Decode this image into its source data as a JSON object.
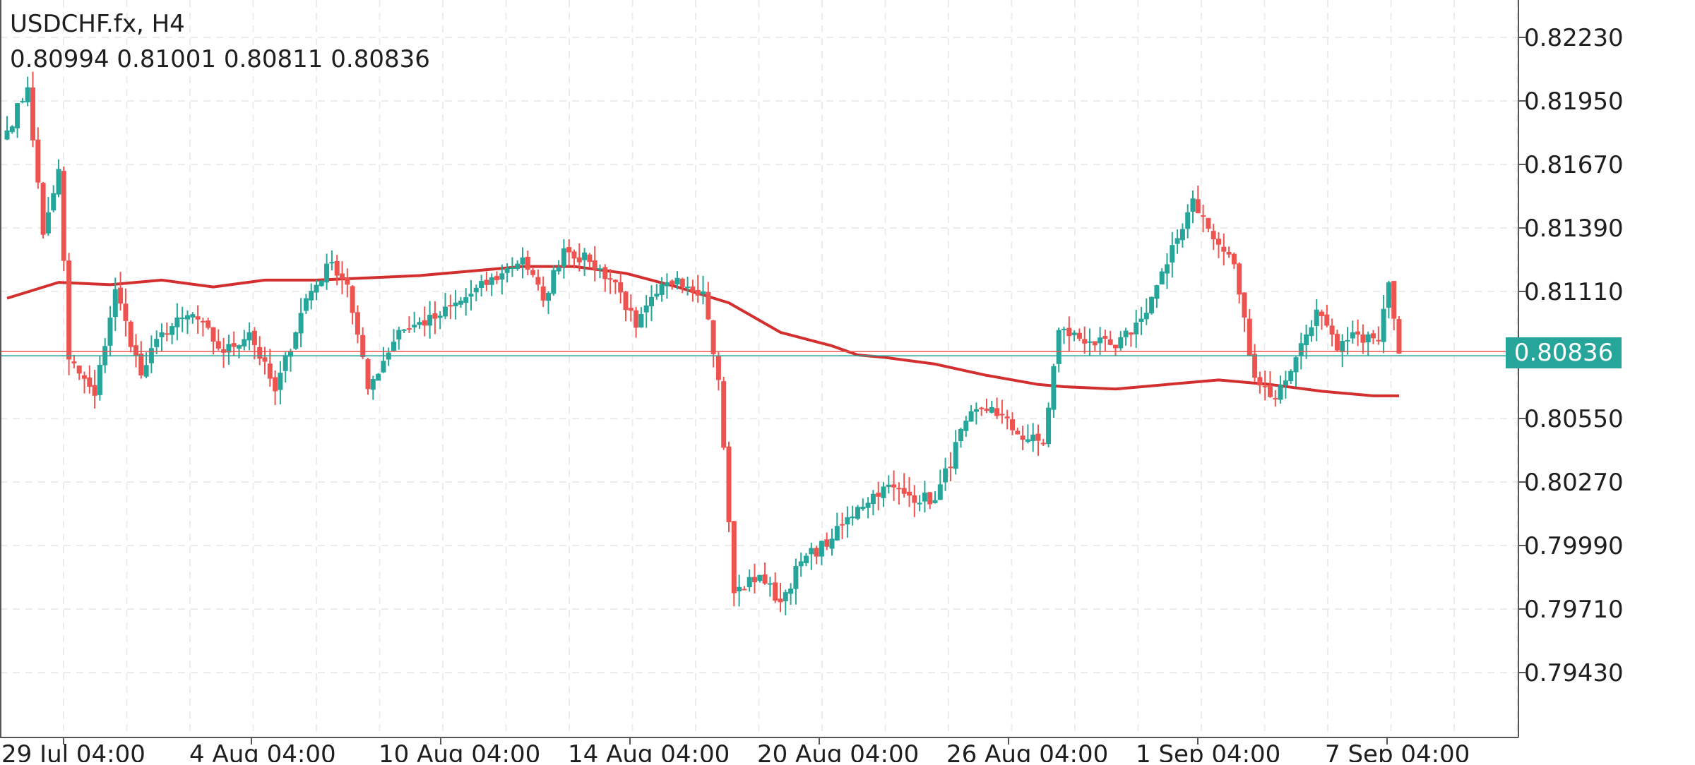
{
  "header": {
    "symbol": "USDCHF.fx",
    "timeframe": "H4",
    "ohlc": [
      "0.80994",
      "0.81001",
      "0.80811",
      "0.80836"
    ]
  },
  "last_price": "0.80836",
  "colors": {
    "bull": "#26a69a",
    "bear": "#ef5350",
    "moving_average": "#d32f2f",
    "grid": "#ececec",
    "text": "#1e1e1e",
    "price_tag": "#26a69a"
  },
  "chart_data": {
    "type": "candlestick",
    "symbol": "USDCHF.fx",
    "timeframe": "H4",
    "ylim": [
      0.792,
      0.8245
    ],
    "y_ticks": [
      "0.82230",
      "0.81950",
      "0.81670",
      "0.81390",
      "0.81110",
      "0.80550",
      "0.80270",
      "0.79990",
      "0.79710",
      "0.79430"
    ],
    "x_ticks": [
      "29 Jul 04:00",
      "4 Aug 04:00",
      "10 Aug 04:00",
      "14 Aug 04:00",
      "20 Aug 04:00",
      "26 Aug 04:00",
      "1 Sep 04:00",
      "7 Sep 04:00"
    ],
    "last_price": 0.80836,
    "grid": true,
    "close_anchors": [
      [
        0,
        0.8182
      ],
      [
        4,
        0.8201
      ],
      [
        7,
        0.8136
      ],
      [
        10,
        0.8165
      ],
      [
        12,
        0.8081
      ],
      [
        17,
        0.8065
      ],
      [
        21,
        0.8112
      ],
      [
        26,
        0.8074
      ],
      [
        30,
        0.8093
      ],
      [
        36,
        0.8101
      ],
      [
        42,
        0.8084
      ],
      [
        47,
        0.8093
      ],
      [
        52,
        0.8067
      ],
      [
        58,
        0.8108
      ],
      [
        63,
        0.8124
      ],
      [
        66,
        0.8114
      ],
      [
        70,
        0.8068
      ],
      [
        76,
        0.8094
      ],
      [
        83,
        0.8099
      ],
      [
        90,
        0.811
      ],
      [
        96,
        0.8119
      ],
      [
        100,
        0.8126
      ],
      [
        104,
        0.8107
      ],
      [
        108,
        0.813
      ],
      [
        113,
        0.8124
      ],
      [
        118,
        0.8115
      ],
      [
        122,
        0.8095
      ],
      [
        126,
        0.811
      ],
      [
        130,
        0.8117
      ],
      [
        135,
        0.8111
      ],
      [
        138,
        0.8072
      ],
      [
        141,
        0.7978
      ],
      [
        146,
        0.7986
      ],
      [
        150,
        0.7974
      ],
      [
        154,
        0.7992
      ],
      [
        160,
        0.8002
      ],
      [
        165,
        0.8016
      ],
      [
        170,
        0.8025
      ],
      [
        175,
        0.8021
      ],
      [
        180,
        0.8019
      ],
      [
        186,
        0.8054
      ],
      [
        191,
        0.806
      ],
      [
        196,
        0.8048
      ],
      [
        201,
        0.8044
      ],
      [
        204,
        0.8094
      ],
      [
        210,
        0.8089
      ],
      [
        215,
        0.8086
      ],
      [
        220,
        0.8099
      ],
      [
        225,
        0.8123
      ],
      [
        230,
        0.8152
      ],
      [
        234,
        0.8134
      ],
      [
        238,
        0.8123
      ],
      [
        242,
        0.8073
      ],
      [
        246,
        0.8064
      ],
      [
        250,
        0.8082
      ],
      [
        254,
        0.8103
      ],
      [
        258,
        0.8085
      ],
      [
        262,
        0.8092
      ],
      [
        266,
        0.8089
      ],
      [
        268,
        0.8115
      ],
      [
        269,
        0.8099
      ],
      [
        270,
        0.80836
      ]
    ],
    "moving_average": [
      [
        0,
        0.8108
      ],
      [
        10,
        0.8115
      ],
      [
        20,
        0.8114
      ],
      [
        30,
        0.8116
      ],
      [
        40,
        0.8113
      ],
      [
        50,
        0.8116
      ],
      [
        60,
        0.8116
      ],
      [
        70,
        0.8117
      ],
      [
        80,
        0.8118
      ],
      [
        90,
        0.812
      ],
      [
        100,
        0.8122
      ],
      [
        110,
        0.8122
      ],
      [
        120,
        0.8119
      ],
      [
        130,
        0.8113
      ],
      [
        140,
        0.8106
      ],
      [
        150,
        0.8093
      ],
      [
        160,
        0.8087
      ],
      [
        165,
        0.8083
      ],
      [
        170,
        0.8082
      ],
      [
        180,
        0.8079
      ],
      [
        190,
        0.8074
      ],
      [
        200,
        0.807
      ],
      [
        205,
        0.8069
      ],
      [
        215,
        0.8068
      ],
      [
        225,
        0.807
      ],
      [
        235,
        0.8072
      ],
      [
        245,
        0.807
      ],
      [
        255,
        0.8067
      ],
      [
        265,
        0.8065
      ],
      [
        270,
        0.8065
      ]
    ]
  }
}
